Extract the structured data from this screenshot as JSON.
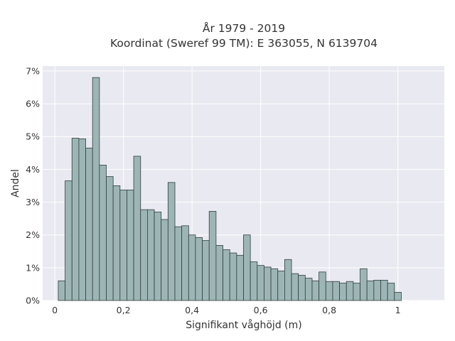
{
  "chart_data": {
    "type": "bar",
    "title_lines": [
      "År 1979 - 2019",
      "Koordinat (Sweref 99 TM): E 363055, N 6139704"
    ],
    "xlabel": "Signifikant våghöjd (m)",
    "ylabel": "Andel",
    "bin_width": 0.02,
    "bin_start": 0.01,
    "values": [
      0.6,
      3.65,
      4.95,
      4.93,
      4.65,
      6.8,
      4.13,
      3.78,
      3.5,
      3.37,
      3.37,
      4.4,
      2.77,
      2.77,
      2.7,
      2.47,
      3.6,
      2.25,
      2.28,
      2.0,
      1.92,
      1.83,
      2.72,
      1.68,
      1.55,
      1.45,
      1.38,
      2.0,
      1.18,
      1.07,
      1.02,
      0.97,
      0.9,
      1.25,
      0.82,
      0.77,
      0.68,
      0.6,
      0.87,
      0.58,
      0.58,
      0.53,
      0.58,
      0.53,
      0.97,
      0.6,
      0.62,
      0.62,
      0.53,
      0.25
    ],
    "xlim": [
      -0.0355,
      1.1355
    ],
    "ylim": [
      0,
      7.15
    ],
    "x_ticks": [
      0,
      0.2,
      0.4,
      0.6,
      0.8,
      1
    ],
    "x_tick_labels": [
      "0",
      "0,2",
      "0,4",
      "0,6",
      "0,8",
      "1"
    ],
    "y_ticks": [
      0,
      1,
      2,
      3,
      4,
      5,
      6,
      7
    ],
    "y_tick_labels": [
      "0%",
      "1%",
      "2%",
      "3%",
      "4%",
      "5%",
      "6%",
      "7%"
    ],
    "grid": true,
    "colors": {
      "bar_fill": "#9db6b5",
      "bar_stroke": "#2f3e3e",
      "plot_bg": "#e9e9f1",
      "grid": "#ffffff"
    }
  }
}
